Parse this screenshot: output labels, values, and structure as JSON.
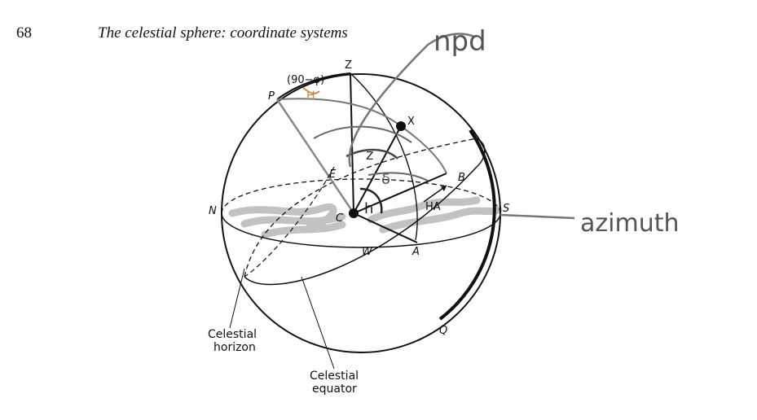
{
  "header": {
    "page_number": "68",
    "title": "The celestial sphere: coordinate systems"
  },
  "diagram": {
    "labels": {
      "zenith": "Z",
      "pole": "P",
      "star": "X",
      "east": "E",
      "north": "N",
      "south": "S",
      "west": "W",
      "centre": "C",
      "point_a": "A",
      "point_b": "B",
      "point_q": "Q",
      "hour_angle": "HA",
      "colatitude": "(90−φ)"
    },
    "captions": {
      "horizon": [
        "Celestial",
        "horizon"
      ],
      "equator": [
        "Celestial",
        "equator"
      ]
    },
    "annotations": {
      "npd": "npd",
      "azimuth": "azimuth",
      "hour_angle_symbol": "H",
      "zenith_distance_symbol": "z",
      "declination_symbol": "δ",
      "altitude_symbol": "h"
    }
  },
  "colors": {
    "ink": "#111111",
    "pencil": "#666666",
    "orange_pencil": "#c98a4f",
    "hatch": "#b5b5b5"
  }
}
